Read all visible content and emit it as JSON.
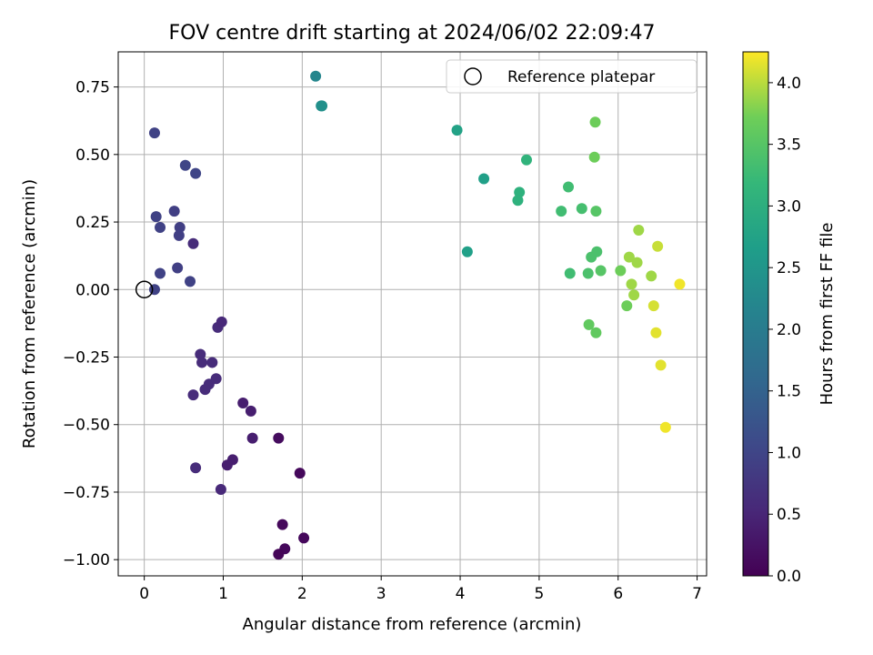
{
  "chart_data": {
    "type": "scatter",
    "title": "FOV centre drift starting at 2024/06/02 22:09:47",
    "xlabel": "Angular distance from reference (arcmin)",
    "ylabel": "Rotation from reference (arcmin)",
    "xlim": [
      -0.33,
      7.12
    ],
    "ylim": [
      -1.06,
      0.88
    ],
    "xticks": [
      0,
      1,
      2,
      3,
      4,
      5,
      6,
      7
    ],
    "yticks": [
      -1.0,
      -0.75,
      -0.5,
      -0.25,
      0.0,
      0.25,
      0.5,
      0.75
    ],
    "ytick_labels": [
      "−1.00",
      "−0.75",
      "−0.50",
      "−0.25",
      "0.00",
      "0.25",
      "0.50",
      "0.75"
    ],
    "grid": true,
    "legend": {
      "position": "top-right",
      "entries": [
        "Reference platepar"
      ]
    },
    "reference_point": {
      "x": 0.0,
      "y": 0.0
    },
    "colorbar": {
      "label": "Hours from first FF file",
      "colormap": "viridis",
      "range": [
        0.0,
        4.25
      ],
      "ticks": [
        0.0,
        0.5,
        1.0,
        1.5,
        2.0,
        2.5,
        3.0,
        3.5,
        4.0
      ],
      "tick_labels": [
        "0.0",
        "0.5",
        "1.0",
        "1.5",
        "2.0",
        "2.5",
        "3.0",
        "3.5",
        "4.0"
      ]
    },
    "points": [
      {
        "x": 0.13,
        "y": 0.58,
        "h": 0.95
      },
      {
        "x": 0.52,
        "y": 0.46,
        "h": 1.0
      },
      {
        "x": 0.65,
        "y": 0.43,
        "h": 1.0
      },
      {
        "x": 0.38,
        "y": 0.29,
        "h": 0.9
      },
      {
        "x": 0.15,
        "y": 0.27,
        "h": 0.95
      },
      {
        "x": 0.45,
        "y": 0.23,
        "h": 0.9
      },
      {
        "x": 0.2,
        "y": 0.23,
        "h": 0.95
      },
      {
        "x": 0.44,
        "y": 0.2,
        "h": 0.9
      },
      {
        "x": 0.62,
        "y": 0.17,
        "h": 0.6
      },
      {
        "x": 0.42,
        "y": 0.08,
        "h": 0.9
      },
      {
        "x": 0.2,
        "y": 0.06,
        "h": 0.95
      },
      {
        "x": 0.58,
        "y": 0.03,
        "h": 0.95
      },
      {
        "x": 0.13,
        "y": 0.0,
        "h": 0.95
      },
      {
        "x": 0.93,
        "y": -0.14,
        "h": 0.6
      },
      {
        "x": 0.98,
        "y": -0.12,
        "h": 0.55
      },
      {
        "x": 0.71,
        "y": -0.24,
        "h": 0.6
      },
      {
        "x": 0.86,
        "y": -0.27,
        "h": 0.6
      },
      {
        "x": 0.73,
        "y": -0.27,
        "h": 0.6
      },
      {
        "x": 0.82,
        "y": -0.35,
        "h": 0.6
      },
      {
        "x": 0.91,
        "y": -0.33,
        "h": 0.6
      },
      {
        "x": 0.77,
        "y": -0.37,
        "h": 0.6
      },
      {
        "x": 0.62,
        "y": -0.39,
        "h": 0.6
      },
      {
        "x": 1.25,
        "y": -0.42,
        "h": 0.4
      },
      {
        "x": 1.35,
        "y": -0.45,
        "h": 0.4
      },
      {
        "x": 1.37,
        "y": -0.55,
        "h": 0.4
      },
      {
        "x": 1.7,
        "y": -0.55,
        "h": 0.15
      },
      {
        "x": 0.65,
        "y": -0.66,
        "h": 0.6
      },
      {
        "x": 1.12,
        "y": -0.63,
        "h": 0.4
      },
      {
        "x": 1.05,
        "y": -0.65,
        "h": 0.4
      },
      {
        "x": 1.97,
        "y": -0.68,
        "h": 0.1
      },
      {
        "x": 0.97,
        "y": -0.74,
        "h": 0.55
      },
      {
        "x": 1.75,
        "y": -0.87,
        "h": 0.1
      },
      {
        "x": 2.02,
        "y": -0.92,
        "h": 0.1
      },
      {
        "x": 1.78,
        "y": -0.96,
        "h": 0.1
      },
      {
        "x": 1.7,
        "y": -0.98,
        "h": 0.05
      },
      {
        "x": 2.17,
        "y": 0.79,
        "h": 2.2
      },
      {
        "x": 2.24,
        "y": 0.68,
        "h": 2.35
      },
      {
        "x": 2.25,
        "y": 0.68,
        "h": 2.4
      },
      {
        "x": 3.96,
        "y": 0.59,
        "h": 2.75
      },
      {
        "x": 4.3,
        "y": 0.41,
        "h": 2.7
      },
      {
        "x": 4.09,
        "y": 0.14,
        "h": 2.7
      },
      {
        "x": 4.84,
        "y": 0.48,
        "h": 3.1
      },
      {
        "x": 4.75,
        "y": 0.36,
        "h": 3.05
      },
      {
        "x": 4.73,
        "y": 0.33,
        "h": 3.05
      },
      {
        "x": 5.37,
        "y": 0.38,
        "h": 3.3
      },
      {
        "x": 5.28,
        "y": 0.29,
        "h": 3.3
      },
      {
        "x": 5.54,
        "y": 0.3,
        "h": 3.35
      },
      {
        "x": 5.72,
        "y": 0.29,
        "h": 3.5
      },
      {
        "x": 5.71,
        "y": 0.62,
        "h": 3.7
      },
      {
        "x": 5.7,
        "y": 0.49,
        "h": 3.7
      },
      {
        "x": 5.39,
        "y": 0.06,
        "h": 3.3
      },
      {
        "x": 5.62,
        "y": 0.06,
        "h": 3.4
      },
      {
        "x": 5.66,
        "y": 0.12,
        "h": 3.4
      },
      {
        "x": 5.73,
        "y": 0.14,
        "h": 3.4
      },
      {
        "x": 5.78,
        "y": 0.07,
        "h": 3.5
      },
      {
        "x": 5.63,
        "y": -0.13,
        "h": 3.6
      },
      {
        "x": 5.72,
        "y": -0.16,
        "h": 3.6
      },
      {
        "x": 6.03,
        "y": 0.07,
        "h": 3.7
      },
      {
        "x": 6.11,
        "y": -0.06,
        "h": 3.7
      },
      {
        "x": 6.26,
        "y": 0.22,
        "h": 3.9
      },
      {
        "x": 6.14,
        "y": 0.12,
        "h": 3.9
      },
      {
        "x": 6.24,
        "y": 0.1,
        "h": 3.9
      },
      {
        "x": 6.17,
        "y": 0.02,
        "h": 3.9
      },
      {
        "x": 6.2,
        "y": -0.02,
        "h": 3.9
      },
      {
        "x": 6.42,
        "y": 0.05,
        "h": 3.9
      },
      {
        "x": 6.5,
        "y": 0.16,
        "h": 4.05
      },
      {
        "x": 6.45,
        "y": -0.06,
        "h": 4.1
      },
      {
        "x": 6.48,
        "y": -0.16,
        "h": 4.15
      },
      {
        "x": 6.54,
        "y": -0.28,
        "h": 4.15
      },
      {
        "x": 6.6,
        "y": -0.51,
        "h": 4.2
      },
      {
        "x": 6.78,
        "y": 0.02,
        "h": 4.2
      }
    ]
  }
}
